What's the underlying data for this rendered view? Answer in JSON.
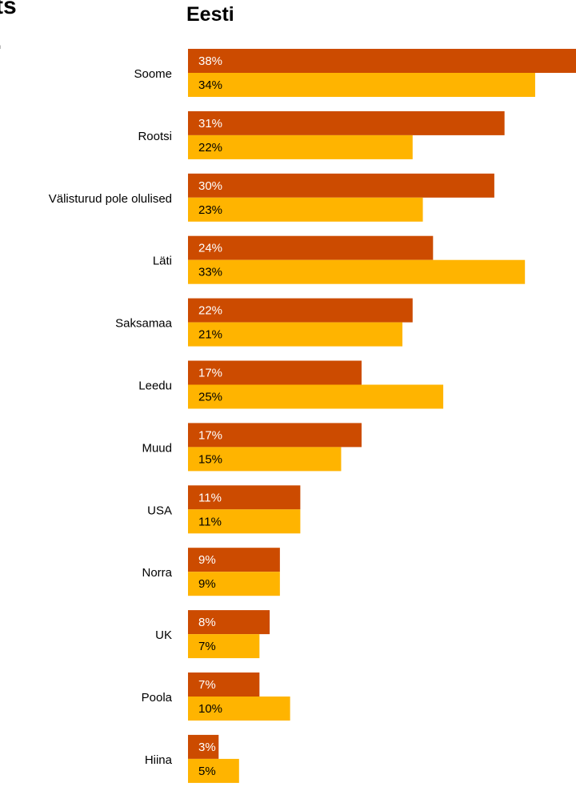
{
  "header": {
    "cropped_text": "ts\n."
  },
  "chart_data": {
    "type": "bar",
    "orientation": "horizontal",
    "title": "Eesti",
    "categories": [
      "Soome",
      "Rootsi",
      "Välisturud pole olulised",
      "Läti",
      "Saksamaa",
      "Leedu",
      "Muud",
      "USA",
      "Norra",
      "UK",
      "Poola",
      "Hiina"
    ],
    "series": [
      {
        "values": [
          38,
          31,
          30,
          24,
          22,
          17,
          17,
          11,
          9,
          8,
          7,
          3
        ],
        "labels": [
          "38%",
          "31%",
          "30%",
          "24%",
          "22%",
          "17%",
          "17%",
          "11%",
          "9%",
          "8%",
          "7%",
          "3%"
        ],
        "color": "#cc4b00",
        "label_color": "#ffffff"
      },
      {
        "values": [
          34,
          22,
          23,
          33,
          21,
          25,
          15,
          11,
          9,
          7,
          10,
          5
        ],
        "labels": [
          "34%",
          "22%",
          "23%",
          "33%",
          "21%",
          "25%",
          "15%",
          "11%",
          "9%",
          "7%",
          "10%",
          "5%"
        ],
        "color": "#ffb400",
        "label_color": "#000000"
      }
    ],
    "unit": "%",
    "xlim": [
      0,
      38
    ],
    "grid": false,
    "legend": "none"
  }
}
